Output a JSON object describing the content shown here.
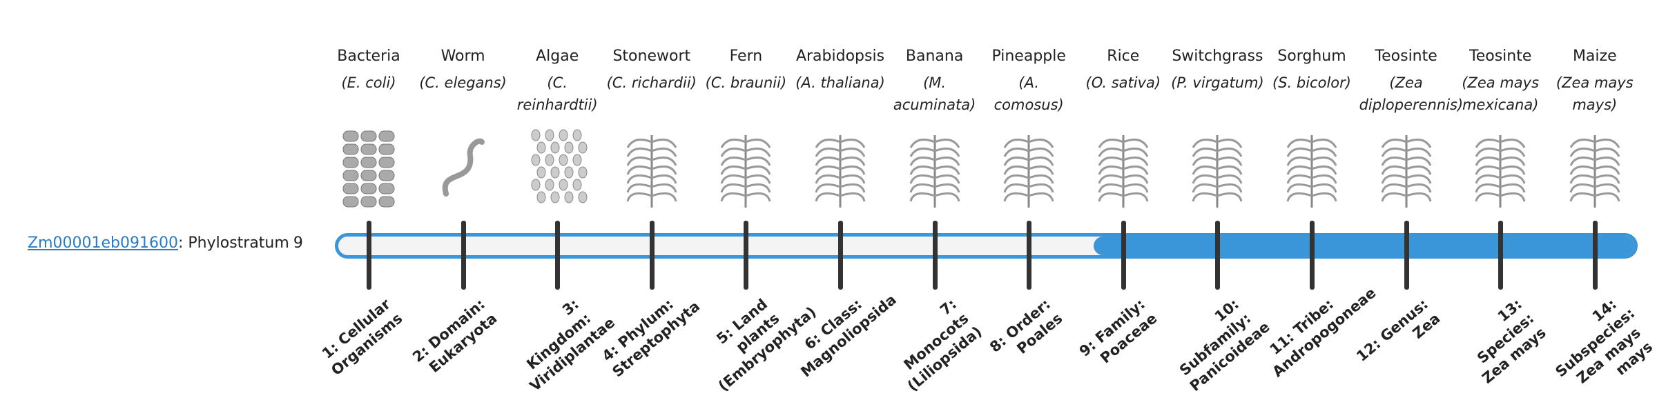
{
  "gene": {
    "id": "Zm00001eb091600",
    "label": ": Phylostratum",
    "stratum": 9
  },
  "organisms": [
    {
      "name": "Bacteria",
      "species": "(E. coli)",
      "stratum": "1: Cellular Organisms"
    },
    {
      "name": "Worm",
      "species": "(C. elegans)",
      "stratum": "2: Domain: Eukaryota"
    },
    {
      "name": "Algae",
      "species": "(C. reinhardtii)",
      "stratum": "3: Kingdom: Viridiplantae"
    },
    {
      "name": "Stonewort",
      "species": "(C. richardii)",
      "stratum": "4: Phylum: Streptophyta"
    },
    {
      "name": "Fern",
      "species": "(C. braunii)",
      "stratum": "5: Land plants (Embryophyta)"
    },
    {
      "name": "Arabidopsis",
      "species": "(A. thaliana)",
      "stratum": "6: Class: Magnoliopsida"
    },
    {
      "name": "Banana",
      "species": "(M. acuminata)",
      "stratum": "7: Monocots (Liliopsida)"
    },
    {
      "name": "Pineapple",
      "species": "(A. comosus)",
      "stratum": "8: Order: Poales"
    },
    {
      "name": "Rice",
      "species": "(O. sativa)",
      "stratum": "9: Family: Poaceae"
    },
    {
      "name": "Switchgrass",
      "species": "(P. virgatum)",
      "stratum": "10: Subfamily: Panicoideae"
    },
    {
      "name": "Sorghum",
      "species": "(S. bicolor)",
      "stratum": "11: Tribe: Andropogoneae"
    },
    {
      "name": "Teosinte",
      "species": "(Zea diploperennis)",
      "stratum": "12: Genus: Zea"
    },
    {
      "name": "Teosinte",
      "species": "(Zea mays mexicana)",
      "stratum": "13: Species: Zea mays"
    },
    {
      "name": "Maize",
      "species": "(Zea mays mays)",
      "stratum": "14: Subspecies: Zea mays mays"
    }
  ]
}
